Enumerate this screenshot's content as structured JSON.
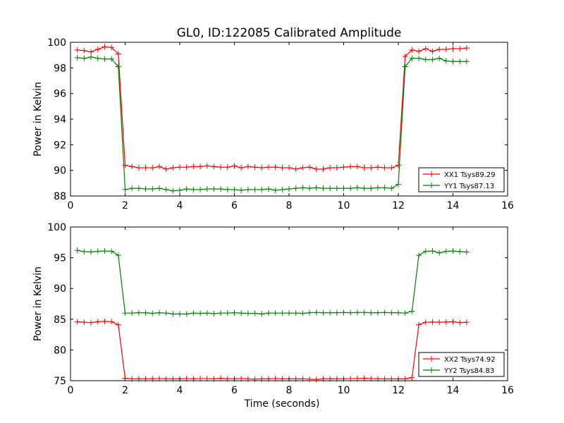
{
  "title": "GL0, ID:122085 Calibrated Amplitude",
  "colors": {
    "XX": "#ff0000",
    "YY": "#008000"
  },
  "chart_data": [
    {
      "type": "line",
      "ylabel": "Power in Kelvin",
      "xlabel": "",
      "xlim": [
        0,
        16
      ],
      "ylim": [
        88,
        100
      ],
      "xticks": [
        0,
        2,
        4,
        6,
        8,
        10,
        12,
        14,
        16
      ],
      "yticks": [
        88,
        90,
        92,
        94,
        96,
        98,
        100
      ],
      "grid": false,
      "legend": "lower-right",
      "x": [
        0.25,
        0.5,
        0.75,
        1.0,
        1.25,
        1.5,
        1.75,
        2.0,
        2.25,
        2.5,
        2.75,
        3.0,
        3.25,
        3.5,
        3.75,
        4.0,
        4.25,
        4.5,
        4.75,
        5.0,
        5.25,
        5.5,
        5.75,
        6.0,
        6.25,
        6.5,
        6.75,
        7.0,
        7.25,
        7.5,
        7.75,
        8.0,
        8.25,
        8.5,
        8.75,
        9.0,
        9.25,
        9.5,
        9.75,
        10.0,
        10.25,
        10.5,
        10.75,
        11.0,
        11.25,
        11.5,
        11.75,
        12.0,
        12.25,
        12.5,
        12.75,
        13.0,
        13.25,
        13.5,
        13.75,
        14.0,
        14.25,
        14.5
      ],
      "series": [
        {
          "name": "XX1 Tsys89.29",
          "color": "#ff0000",
          "values": [
            99.4,
            99.35,
            99.25,
            99.45,
            99.65,
            99.6,
            99.1,
            90.4,
            90.3,
            90.2,
            90.2,
            90.2,
            90.3,
            90.1,
            90.2,
            90.25,
            90.25,
            90.3,
            90.3,
            90.35,
            90.3,
            90.25,
            90.25,
            90.35,
            90.2,
            90.3,
            90.25,
            90.2,
            90.25,
            90.25,
            90.2,
            90.2,
            90.1,
            90.2,
            90.25,
            90.1,
            90.1,
            90.2,
            90.2,
            90.25,
            90.3,
            90.3,
            90.2,
            90.2,
            90.25,
            90.2,
            90.2,
            90.4,
            98.9,
            99.4,
            99.3,
            99.5,
            99.3,
            99.45,
            99.45,
            99.5,
            99.5,
            99.55
          ]
        },
        {
          "name": "YY1 Tsys87.13",
          "color": "#008000",
          "values": [
            98.8,
            98.75,
            98.85,
            98.75,
            98.7,
            98.7,
            98.1,
            88.5,
            88.6,
            88.6,
            88.55,
            88.55,
            88.6,
            88.5,
            88.4,
            88.45,
            88.55,
            88.5,
            88.5,
            88.55,
            88.55,
            88.55,
            88.5,
            88.5,
            88.45,
            88.5,
            88.5,
            88.5,
            88.55,
            88.45,
            88.5,
            88.55,
            88.6,
            88.65,
            88.6,
            88.65,
            88.6,
            88.6,
            88.6,
            88.6,
            88.6,
            88.65,
            88.6,
            88.6,
            88.65,
            88.65,
            88.6,
            88.9,
            98.1,
            98.75,
            98.75,
            98.65,
            98.65,
            98.75,
            98.55,
            98.5,
            98.5,
            98.5
          ]
        }
      ]
    },
    {
      "type": "line",
      "ylabel": "Power in Kelvin",
      "xlabel": "Time (seconds)",
      "xlim": [
        0,
        16
      ],
      "ylim": [
        75,
        100
      ],
      "xticks": [
        0,
        2,
        4,
        6,
        8,
        10,
        12,
        14,
        16
      ],
      "yticks": [
        75,
        80,
        85,
        90,
        95,
        100
      ],
      "grid": false,
      "legend": "lower-right",
      "x": [
        0.25,
        0.5,
        0.75,
        1.0,
        1.25,
        1.5,
        1.75,
        2.0,
        2.25,
        2.5,
        2.75,
        3.0,
        3.25,
        3.5,
        3.75,
        4.0,
        4.25,
        4.5,
        4.75,
        5.0,
        5.25,
        5.5,
        5.75,
        6.0,
        6.25,
        6.5,
        6.75,
        7.0,
        7.25,
        7.5,
        7.75,
        8.0,
        8.25,
        8.5,
        8.75,
        9.0,
        9.25,
        9.5,
        9.75,
        10.0,
        10.25,
        10.5,
        10.75,
        11.0,
        11.25,
        11.5,
        11.75,
        12.0,
        12.25,
        12.5,
        12.75,
        13.0,
        13.25,
        13.5,
        13.75,
        14.0,
        14.25,
        14.5
      ],
      "series": [
        {
          "name": "XX2 Tsys74.92",
          "color": "#ff0000",
          "values": [
            84.6,
            84.5,
            84.45,
            84.6,
            84.65,
            84.6,
            84.1,
            75.4,
            75.3,
            75.3,
            75.3,
            75.3,
            75.35,
            75.3,
            75.3,
            75.3,
            75.35,
            75.3,
            75.35,
            75.35,
            75.3,
            75.4,
            75.3,
            75.3,
            75.35,
            75.3,
            75.25,
            75.3,
            75.3,
            75.35,
            75.3,
            75.3,
            75.3,
            75.3,
            75.25,
            75.2,
            75.3,
            75.3,
            75.3,
            75.3,
            75.35,
            75.35,
            75.4,
            75.35,
            75.3,
            75.3,
            75.3,
            75.3,
            75.3,
            75.5,
            84.1,
            84.5,
            84.55,
            84.5,
            84.55,
            84.6,
            84.45,
            84.5
          ]
        },
        {
          "name": "YY2 Tsys84.83",
          "color": "#008000",
          "values": [
            96.2,
            96.0,
            95.95,
            96.05,
            96.1,
            96.05,
            95.4,
            86.0,
            86.0,
            86.05,
            86.05,
            85.95,
            86.05,
            86.0,
            85.85,
            85.85,
            85.85,
            86.0,
            85.95,
            86.0,
            85.9,
            86.0,
            86.0,
            86.05,
            86.0,
            85.95,
            85.95,
            85.85,
            86.0,
            86.0,
            86.0,
            86.0,
            86.0,
            85.95,
            86.05,
            86.1,
            86.05,
            86.05,
            86.05,
            86.1,
            86.05,
            86.1,
            86.1,
            86.05,
            86.05,
            86.1,
            86.05,
            86.05,
            86.0,
            86.3,
            95.4,
            96.05,
            96.1,
            95.8,
            96.05,
            96.1,
            96.0,
            95.95
          ]
        }
      ]
    }
  ]
}
